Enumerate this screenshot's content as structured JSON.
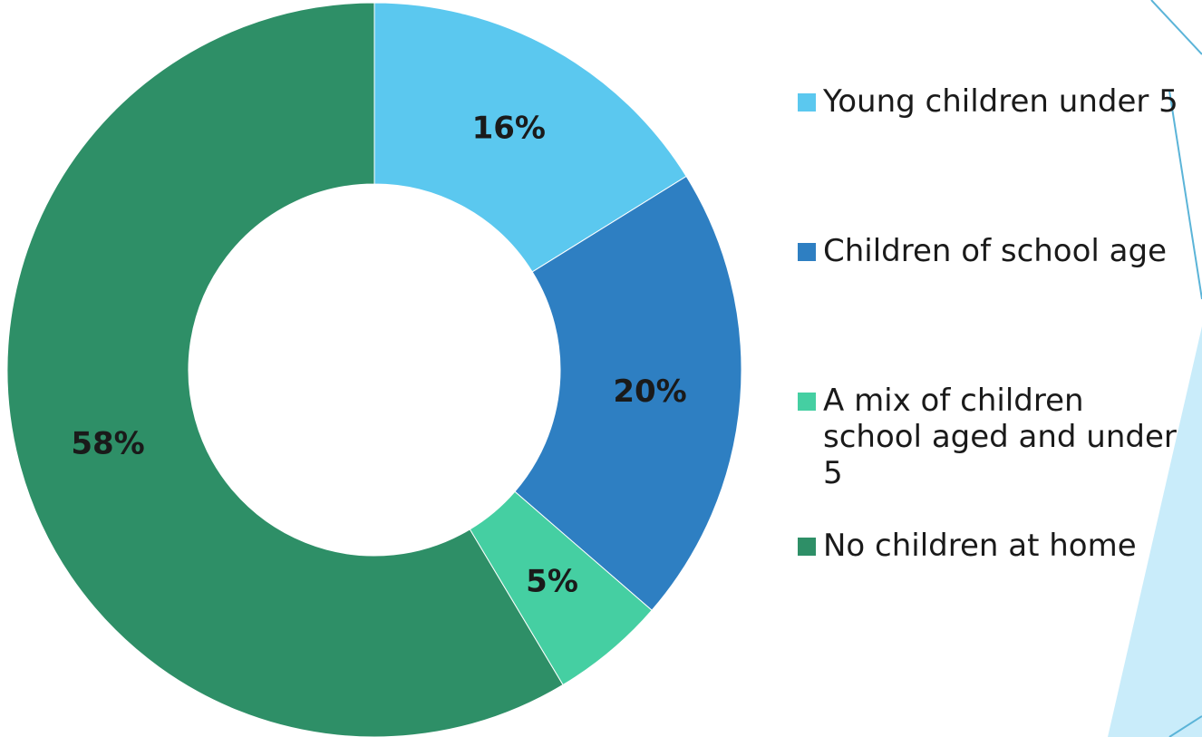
{
  "chart_data": {
    "type": "pie",
    "donut": true,
    "title": "",
    "slices": [
      {
        "label": "Young children under 5",
        "value": 16,
        "value_label": "16%",
        "color": "#5bc8ef"
      },
      {
        "label": "Children of school age",
        "value": 20,
        "value_label": "20%",
        "color": "#2e7fc2"
      },
      {
        "label": "A mix of children school aged and under 5",
        "value": 5,
        "value_label": "5%",
        "color": "#45cfa2"
      },
      {
        "label": "No children at home",
        "value": 58,
        "value_label": "58%",
        "color": "#2e8f67"
      }
    ],
    "legend_position": "right"
  },
  "background_colors": {
    "decor_light": "#c9ecfa",
    "decor_line": "#5bb4d8"
  }
}
